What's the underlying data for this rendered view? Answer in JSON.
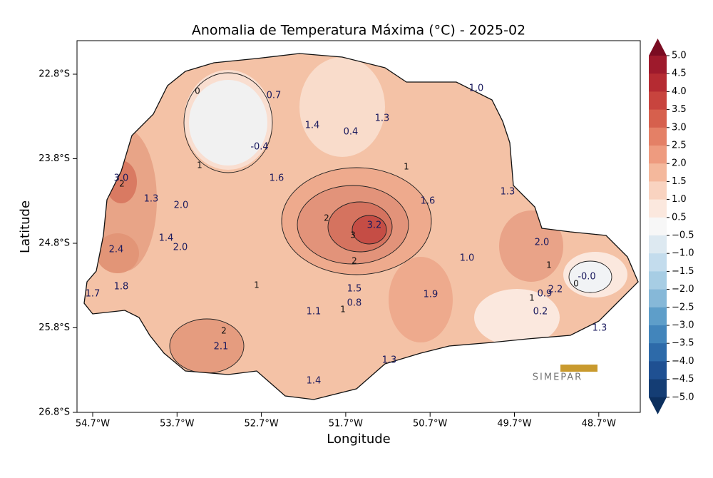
{
  "title": "Anomalia de Temperatura Máxima (°C) - 2025-02",
  "xlabel": "Longitude",
  "ylabel": "Latitude",
  "xticks": [
    "54.7°W",
    "53.7°W",
    "52.7°W",
    "51.7°W",
    "50.7°W",
    "49.7°W",
    "48.7°W"
  ],
  "yticks": [
    "22.8°S",
    "23.8°S",
    "24.8°S",
    "25.8°S",
    "26.8°S"
  ],
  "colorbar": {
    "ticks": [
      "5.0",
      "4.5",
      "4.0",
      "3.5",
      "3.0",
      "2.5",
      "2.0",
      "1.5",
      "1.0",
      "0.5",
      "−0.5",
      "−1.0",
      "−1.5",
      "−2.0",
      "−2.5",
      "−3.0",
      "−3.5",
      "−4.0",
      "−4.5",
      "−5.0"
    ],
    "colors": [
      "#7a0c22",
      "#9e1a2c",
      "#b52b32",
      "#c8443e",
      "#d6604d",
      "#e48066",
      "#ee9b7f",
      "#f4b89c",
      "#f9d3c0",
      "#fbe8de",
      "#f7f7f7",
      "#dde9f1",
      "#c3dced",
      "#a7cde4",
      "#86b8d8",
      "#5e9ec9",
      "#4285bb",
      "#2d6aa9",
      "#1f5092",
      "#143d74",
      "#0c2f5e"
    ]
  },
  "map_labels": [
    "0.7",
    "1.0",
    "1.4",
    "0.4",
    "1.3",
    "-0.4",
    "1.6",
    "3.0",
    "1.3",
    "2.0",
    "1.6",
    "1.3",
    "3.2",
    "1.4",
    "2.0",
    "2.4",
    "1.0",
    "2.0",
    "1.7",
    "1.8",
    "1.5",
    "0.8",
    "1.1",
    "1.9",
    "0.9",
    "2.2",
    "-0.0",
    "0.2",
    "1.3",
    "2.1",
    "1.3",
    "1.4"
  ],
  "contour_labels": [
    "0",
    "1",
    "1",
    "2",
    "2",
    "3",
    "2",
    "1",
    "1",
    "1",
    "1",
    "0",
    "2"
  ],
  "logo": "SIMEPAR"
}
